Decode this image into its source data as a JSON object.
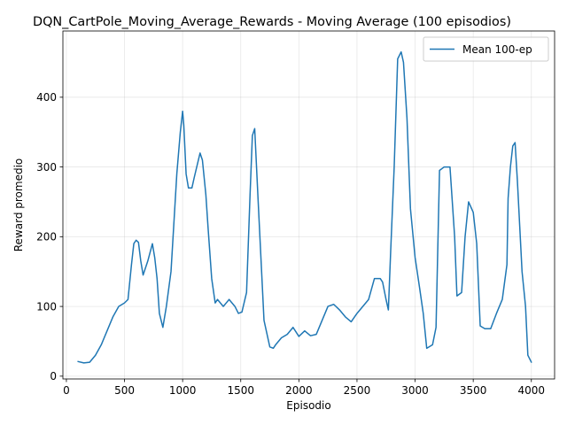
{
  "chart_data": {
    "type": "line",
    "title": "DQN_CartPole_Moving_Average_Rewards - Moving Average (100 episodios)",
    "xlabel": "Episodio",
    "ylabel": "Reward promedio",
    "xlim": [
      -30,
      4200
    ],
    "ylim": [
      -4,
      495
    ],
    "xticks": [
      0,
      500,
      1000,
      1500,
      2000,
      2500,
      3000,
      3500,
      4000
    ],
    "yticks": [
      0,
      100,
      200,
      300,
      400
    ],
    "grid": true,
    "legend_position": "top-right",
    "color": "#1f77b4",
    "series": [
      {
        "name": "Mean 100-ep",
        "x": [
          100,
          150,
          200,
          250,
          300,
          350,
          400,
          450,
          500,
          530,
          560,
          580,
          600,
          620,
          640,
          660,
          700,
          740,
          760,
          780,
          800,
          830,
          860,
          900,
          950,
          980,
          1000,
          1010,
          1030,
          1050,
          1080,
          1100,
          1150,
          1170,
          1200,
          1220,
          1250,
          1280,
          1300,
          1350,
          1400,
          1450,
          1480,
          1510,
          1550,
          1580,
          1600,
          1620,
          1650,
          1700,
          1750,
          1780,
          1800,
          1850,
          1900,
          1950,
          2000,
          2050,
          2100,
          2150,
          2200,
          2250,
          2300,
          2350,
          2400,
          2450,
          2500,
          2550,
          2600,
          2650,
          2700,
          2720,
          2750,
          2770,
          2790,
          2820,
          2850,
          2880,
          2900,
          2930,
          2960,
          3000,
          3040,
          3070,
          3100,
          3150,
          3180,
          3210,
          3250,
          3300,
          3340,
          3360,
          3400,
          3430,
          3460,
          3500,
          3530,
          3560,
          3600,
          3650,
          3700,
          3750,
          3790,
          3800,
          3820,
          3840,
          3860,
          3880,
          3920,
          3950,
          3970,
          4000
        ],
        "y": [
          21,
          19,
          20,
          30,
          45,
          65,
          85,
          100,
          105,
          110,
          160,
          190,
          195,
          192,
          165,
          145,
          165,
          190,
          170,
          140,
          90,
          70,
          100,
          150,
          290,
          350,
          380,
          360,
          290,
          270,
          270,
          285,
          320,
          310,
          260,
          210,
          140,
          105,
          110,
          100,
          110,
          100,
          90,
          92,
          120,
          260,
          345,
          355,
          250,
          80,
          42,
          40,
          45,
          55,
          60,
          70,
          57,
          65,
          58,
          60,
          80,
          100,
          103,
          95,
          85,
          78,
          90,
          100,
          110,
          140,
          140,
          135,
          110,
          95,
          180,
          300,
          455,
          465,
          450,
          370,
          240,
          170,
          125,
          90,
          40,
          45,
          70,
          295,
          300,
          300,
          200,
          115,
          120,
          200,
          250,
          235,
          190,
          72,
          68,
          68,
          90,
          110,
          160,
          255,
          300,
          330,
          335,
          280,
          150,
          100,
          30,
          20
        ]
      }
    ]
  }
}
